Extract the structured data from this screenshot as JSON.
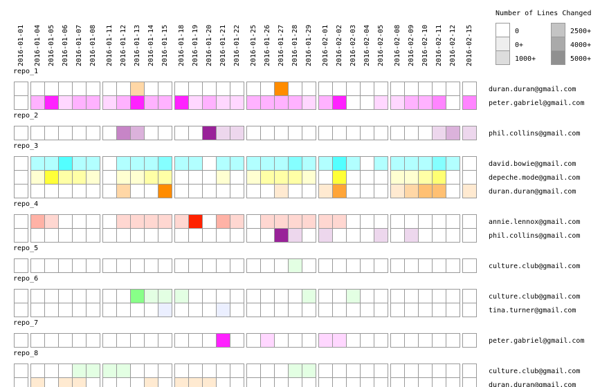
{
  "chart_data": {
    "type": "heatmap",
    "title": "",
    "xlabel": "",
    "ylabel": "",
    "legend": {
      "title": "Number of Lines Changed",
      "levels": [
        {
          "label": "0",
          "color": "#ffffff"
        },
        {
          "label": "0+",
          "color": "#eeeeee"
        },
        {
          "label": "1000+",
          "color": "#dddddd"
        },
        {
          "label": "2500+",
          "color": "#c4c4c4"
        },
        {
          "label": "4000+",
          "color": "#aaaaaa"
        },
        {
          "label": "5000+",
          "color": "#909090"
        }
      ]
    },
    "dates": [
      "2016-01-01",
      "2016-01-04",
      "2016-01-05",
      "2016-01-06",
      "2016-01-07",
      "2016-01-08",
      "2016-01-11",
      "2016-01-12",
      "2016-01-13",
      "2016-01-14",
      "2016-01-15",
      "2016-01-18",
      "2016-01-19",
      "2016-01-20",
      "2016-01-21",
      "2016-01-22",
      "2016-01-25",
      "2016-01-26",
      "2016-01-27",
      "2016-01-28",
      "2016-01-29",
      "2016-02-01",
      "2016-02-02",
      "2016-02-03",
      "2016-02-04",
      "2016-02-05",
      "2016-02-08",
      "2016-02-09",
      "2016-02-10",
      "2016-02-11",
      "2016-02-12",
      "2016-02-15"
    ],
    "user_colors": {
      "duran.duran@gmail.com": "#ff8c00",
      "peter.gabriel@gmail.com": "#ff22ff",
      "phil.collins@gmail.com": "#992299",
      "david.bowie@gmail.com": "#22ffff",
      "depeche.mode@gmail.com": "#ffff00",
      "annie.lennox@gmail.com": "#ff2200",
      "culture.club@gmail.com": "#66ff66",
      "tina.turner@gmail.com": "#8fa8ff"
    },
    "repos": [
      {
        "name": "repo_1",
        "rows": [
          {
            "user": "duran.duran@gmail.com",
            "values": [
              0,
              0,
              0,
              0,
              0,
              0,
              0,
              0,
              2,
              0,
              0,
              0,
              0,
              0,
              0,
              0,
              0,
              0,
              5,
              0,
              0,
              0,
              0,
              0,
              0,
              0,
              0,
              0,
              0,
              0,
              0,
              0
            ]
          },
          {
            "user": "peter.gabriel@gmail.com",
            "values": [
              0,
              2,
              5,
              1,
              2,
              2,
              1,
              2,
              5,
              2,
              2,
              5,
              1,
              2,
              1,
              1,
              2,
              2,
              2,
              2,
              1,
              2,
              5,
              0,
              0,
              1,
              1,
              2,
              2,
              3,
              0,
              3
            ]
          }
        ]
      },
      {
        "name": "repo_2",
        "rows": [
          {
            "user": "phil.collins@gmail.com",
            "values": [
              0,
              0,
              0,
              0,
              0,
              0,
              0,
              3,
              2,
              0,
              0,
              0,
              0,
              5,
              1,
              1,
              0,
              0,
              0,
              0,
              0,
              0,
              0,
              0,
              0,
              0,
              0,
              0,
              0,
              1,
              2,
              1
            ]
          }
        ]
      },
      {
        "name": "repo_3",
        "rows": [
          {
            "user": "david.bowie@gmail.com",
            "values": [
              0,
              2,
              2,
              4,
              2,
              2,
              0,
              2,
              2,
              2,
              3,
              2,
              2,
              0,
              2,
              2,
              2,
              2,
              2,
              3,
              2,
              2,
              4,
              2,
              0,
              2,
              2,
              2,
              2,
              3,
              2,
              0
            ]
          },
          {
            "user": "depeche.mode@gmail.com",
            "values": [
              0,
              1,
              4,
              2,
              2,
              1,
              0,
              1,
              1,
              2,
              2,
              0,
              0,
              0,
              1,
              0,
              1,
              2,
              2,
              2,
              1,
              0,
              4,
              0,
              0,
              0,
              1,
              1,
              2,
              3,
              0,
              0
            ]
          },
          {
            "user": "duran.duran@gmail.com",
            "values": [
              0,
              0,
              0,
              0,
              0,
              0,
              0,
              2,
              0,
              0,
              5,
              0,
              0,
              0,
              0,
              0,
              0,
              0,
              1,
              0,
              0,
              1,
              4,
              0,
              0,
              0,
              1,
              2,
              3,
              3,
              0,
              1
            ]
          }
        ]
      },
      {
        "name": "repo_4",
        "rows": [
          {
            "user": "annie.lennox@gmail.com",
            "values": [
              0,
              2,
              1,
              0,
              0,
              0,
              0,
              1,
              1,
              1,
              1,
              1,
              5,
              0,
              2,
              1,
              0,
              1,
              1,
              1,
              1,
              1,
              1,
              0,
              0,
              0,
              0,
              0,
              0,
              0,
              0,
              0
            ]
          },
          {
            "user": "phil.collins@gmail.com",
            "values": [
              0,
              0,
              0,
              0,
              0,
              0,
              0,
              0,
              0,
              0,
              0,
              0,
              0,
              0,
              0,
              0,
              0,
              0,
              5,
              1,
              0,
              1,
              0,
              0,
              0,
              1,
              0,
              1,
              0,
              0,
              0,
              0
            ]
          }
        ]
      },
      {
        "name": "repo_5",
        "rows": [
          {
            "user": "culture.club@gmail.com",
            "values": [
              0,
              0,
              0,
              0,
              0,
              0,
              0,
              0,
              0,
              0,
              0,
              0,
              0,
              0,
              0,
              0,
              0,
              0,
              0,
              1,
              0,
              0,
              0,
              0,
              0,
              0,
              0,
              0,
              0,
              0,
              0,
              0
            ]
          }
        ]
      },
      {
        "name": "repo_6",
        "rows": [
          {
            "user": "culture.club@gmail.com",
            "values": [
              0,
              0,
              0,
              0,
              0,
              0,
              0,
              0,
              4,
              1,
              1,
              1,
              0,
              0,
              0,
              0,
              0,
              0,
              0,
              0,
              1,
              0,
              0,
              1,
              0,
              0,
              0,
              0,
              0,
              0,
              0,
              0
            ]
          },
          {
            "user": "tina.turner@gmail.com",
            "values": [
              0,
              0,
              0,
              0,
              0,
              0,
              0,
              0,
              0,
              0,
              1,
              0,
              0,
              0,
              1,
              0,
              0,
              0,
              0,
              0,
              0,
              0,
              0,
              0,
              0,
              0,
              0,
              0,
              0,
              0,
              0,
              0
            ]
          }
        ]
      },
      {
        "name": "repo_7",
        "rows": [
          {
            "user": "peter.gabriel@gmail.com",
            "values": [
              0,
              0,
              0,
              0,
              0,
              0,
              0,
              0,
              0,
              0,
              0,
              0,
              0,
              0,
              5,
              0,
              0,
              1,
              0,
              0,
              0,
              1,
              1,
              0,
              0,
              0,
              0,
              0,
              0,
              0,
              0,
              0
            ]
          }
        ]
      },
      {
        "name": "repo_8",
        "rows": [
          {
            "user": "culture.club@gmail.com",
            "values": [
              0,
              0,
              0,
              0,
              1,
              1,
              1,
              1,
              0,
              0,
              0,
              0,
              0,
              0,
              0,
              0,
              0,
              0,
              0,
              1,
              1,
              0,
              0,
              0,
              0,
              0,
              0,
              0,
              0,
              0,
              0,
              0
            ]
          },
          {
            "user": "duran.duran@gmail.com",
            "values": [
              0,
              1,
              0,
              1,
              1,
              0,
              0,
              0,
              0,
              1,
              0,
              1,
              1,
              1,
              0,
              0,
              0,
              0,
              0,
              0,
              0,
              0,
              0,
              0,
              0,
              0,
              0,
              0,
              0,
              0,
              0,
              0
            ]
          }
        ]
      }
    ]
  }
}
